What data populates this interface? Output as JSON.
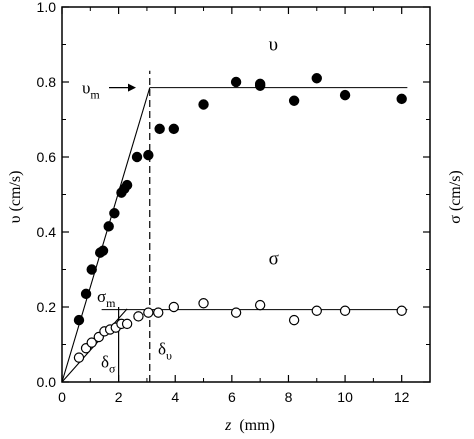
{
  "chart_data": {
    "type": "scatter",
    "xlabel_var": "z",
    "xlabel_unit": "(mm)",
    "ylabel_left": "υ (cm/s)",
    "ylabel_right": "σ (cm/s)",
    "xlim": [
      0,
      13
    ],
    "ylim": [
      0,
      1.0
    ],
    "x_ticks": [
      0,
      2,
      4,
      6,
      8,
      10,
      12
    ],
    "y_ticks": [
      0.0,
      0.2,
      0.4,
      0.6,
      0.8,
      1.0
    ],
    "y_tick_labels": [
      "0.0",
      "0.2",
      "0.4",
      "0.6",
      "0.8",
      "1.0"
    ],
    "grid": false,
    "series": [
      {
        "name": "υ",
        "marker": "filled-circle",
        "x": [
          0.6,
          0.85,
          1.05,
          1.35,
          1.45,
          1.65,
          1.85,
          2.1,
          2.2,
          2.3,
          2.65,
          3.05,
          3.45,
          3.95,
          5.0,
          6.15,
          7.0,
          7.0,
          8.2,
          9.0,
          10.0,
          12.0
        ],
        "y": [
          0.165,
          0.235,
          0.3,
          0.345,
          0.35,
          0.415,
          0.45,
          0.505,
          0.515,
          0.525,
          0.6,
          0.605,
          0.675,
          0.675,
          0.74,
          0.8,
          0.79,
          0.795,
          0.75,
          0.81,
          0.765,
          0.755
        ]
      },
      {
        "name": "σ",
        "marker": "open-circle",
        "x": [
          0.6,
          0.85,
          1.05,
          1.3,
          1.5,
          1.7,
          1.9,
          2.1,
          2.3,
          2.7,
          3.05,
          3.4,
          3.95,
          5.0,
          6.15,
          7.0,
          8.2,
          9.0,
          10.0,
          12.0
        ],
        "y": [
          0.065,
          0.09,
          0.105,
          0.12,
          0.135,
          0.14,
          0.145,
          0.155,
          0.155,
          0.175,
          0.185,
          0.185,
          0.2,
          0.21,
          0.185,
          0.205,
          0.165,
          0.19,
          0.19,
          0.19
        ]
      }
    ],
    "fit_lines": [
      {
        "name": "υ rise",
        "x": [
          0,
          3.1
        ],
        "y": [
          0,
          0.785
        ]
      },
      {
        "name": "υ plateau",
        "x": [
          3.1,
          12.2
        ],
        "y": [
          0.785,
          0.785
        ]
      },
      {
        "name": "σ rise",
        "x": [
          0,
          2.3
        ],
        "y": [
          0,
          0.195
        ]
      },
      {
        "name": "σ plateau",
        "x": [
          1.4,
          12.2
        ],
        "y": [
          0.193,
          0.193
        ]
      }
    ],
    "vlines": [
      {
        "name": "δυ",
        "x": 3.1,
        "y_range": [
          0,
          0.83
        ],
        "style": "dashed"
      },
      {
        "name": "δσ",
        "x": 2.0,
        "y_range": [
          0,
          0.2
        ],
        "style": "solid"
      }
    ],
    "annotations": {
      "upsilon_label": "υ",
      "sigma_label": "σ",
      "upsilon_m": {
        "sym": "υ",
        "sub": "m"
      },
      "sigma_m": {
        "sym": "σ",
        "sub": "m"
      },
      "delta_sigma": {
        "sym": "δ",
        "sub": "σ"
      },
      "delta_upsilon": {
        "sym": "δ",
        "sub": "υ"
      }
    }
  }
}
